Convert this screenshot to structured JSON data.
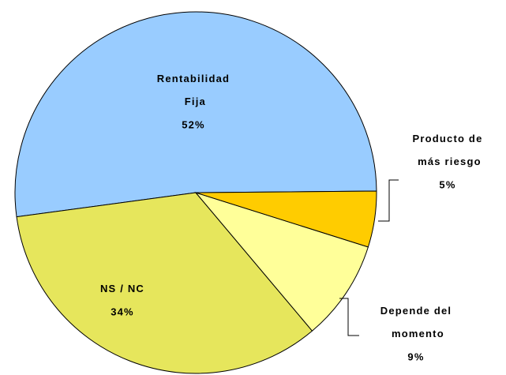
{
  "chart_data": {
    "type": "pie",
    "categories": [
      "Rentabilidad Fija",
      "NS / NC",
      "Depende del momento",
      "Producto de más riesgo"
    ],
    "values": [
      52,
      34,
      9,
      5
    ],
    "value_labels": [
      "52%",
      "34%",
      "9%",
      "5%"
    ],
    "colors": [
      "#99ccff",
      "#e6e65c",
      "#ffff99",
      "#ffcc00"
    ]
  }
}
